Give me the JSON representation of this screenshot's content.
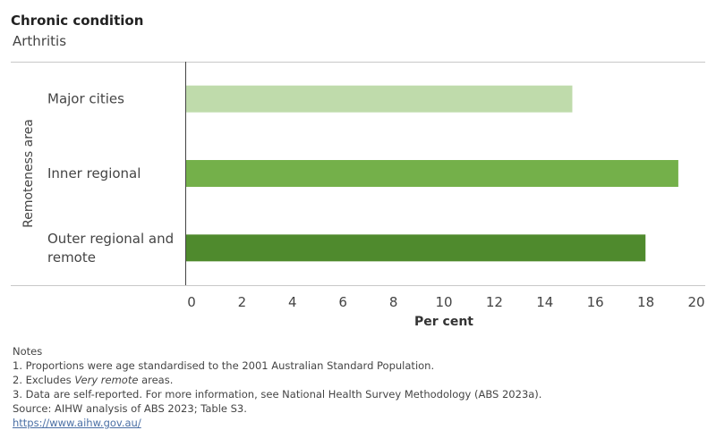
{
  "filter": {
    "label": "Chronic condition",
    "value": "Arthritis"
  },
  "chart_data": {
    "type": "bar",
    "orientation": "horizontal",
    "categories": [
      "Major cities",
      "Inner regional",
      "Outer regional and remote"
    ],
    "category_lines": [
      [
        "Major cities"
      ],
      [
        "Inner regional"
      ],
      [
        "Outer regional and",
        "remote"
      ]
    ],
    "values": [
      15.3,
      19.5,
      18.2
    ],
    "colors": [
      "#bfdbab",
      "#74b04a",
      "#4f8a2d"
    ],
    "xlabel": "Per cent",
    "ylabel": "Remoteness area",
    "xlim": [
      0,
      20
    ],
    "xticks": [
      0,
      2,
      4,
      6,
      8,
      10,
      12,
      14,
      16,
      18,
      20
    ],
    "grid": false
  },
  "notes": {
    "heading": "Notes",
    "note1": "1. Proportions were age standardised to the 2001 Australian Standard Population.",
    "note2_prefix": "2. Excludes ",
    "note2_italic": "Very remote",
    "note2_suffix": " areas.",
    "note3": "3. Data are self-reported. For more information, see National Health Survey Methodology (ABS 2023a).",
    "source": "Source: AIHW analysis of ABS 2023; Table S3.",
    "link": "https://www.aihw.gov.au/"
  }
}
